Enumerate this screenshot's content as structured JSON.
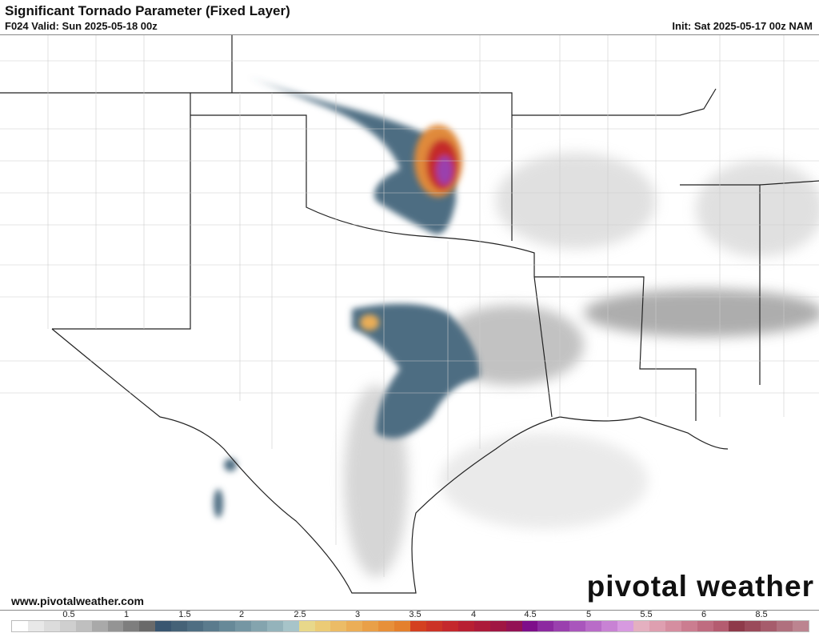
{
  "header": {
    "title": "Significant Tornado Parameter (Fixed Layer)",
    "valid": "F024 Valid: Sun 2025-05-18 00z",
    "init": "Init: Sat 2025-05-17 00z NAM"
  },
  "footer": {
    "url": "www.pivotalweather.com",
    "logo": "pivotal weather"
  },
  "colorbar": {
    "ticks": [
      "0.5",
      "1",
      "1.5",
      "2",
      "2.5",
      "3",
      "3.5",
      "4",
      "4.5",
      "5",
      "5.5",
      "6",
      "8.5"
    ],
    "colors": [
      "#ffffff",
      "#e8e8e8",
      "#dcdcdc",
      "#cfcfcf",
      "#bfbfbf",
      "#a9a9a9",
      "#949494",
      "#7e7e7e",
      "#6a6a6a",
      "#3a5670",
      "#456277",
      "#4f6e82",
      "#5b7b8d",
      "#678998",
      "#7596a3",
      "#84a4ae",
      "#94b3bb",
      "#a7c4c9",
      "#e8d88a",
      "#ebcb76",
      "#ecbc66",
      "#ebae57",
      "#e9a048",
      "#e7903a",
      "#e4802d",
      "#d44020",
      "#cc3326",
      "#c4282c",
      "#b81f32",
      "#ac1a3a",
      "#a01643",
      "#931254",
      "#7e0e8a",
      "#8c2aa0",
      "#9a40ae",
      "#a956bc",
      "#b96cc8",
      "#c882d4",
      "#d79ae0",
      "#e4b0c0",
      "#de9fb0",
      "#d58ea0",
      "#cb7d90",
      "#bf6c80",
      "#b45c70",
      "#8e3a4a",
      "#9a4a5a",
      "#a65c6c",
      "#b0707e",
      "#bc8490"
    ]
  }
}
